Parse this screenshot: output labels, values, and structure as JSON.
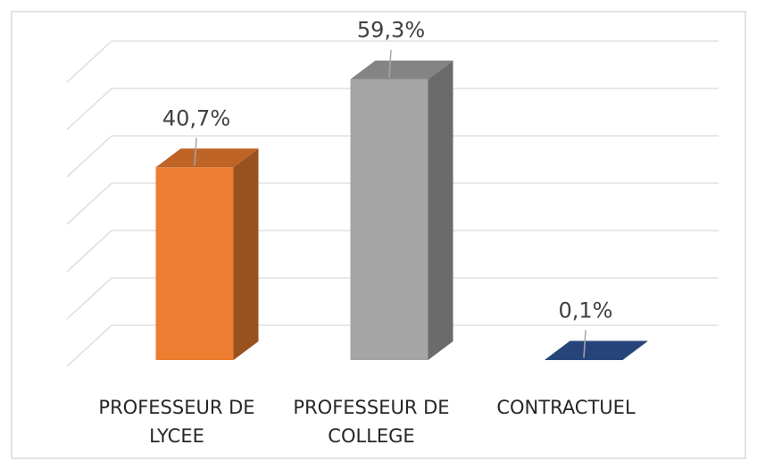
{
  "chart_data": {
    "type": "bar3d",
    "categories": [
      "PROFESSEUR DE LYCEE",
      "PROFESSEUR DE COLLEGE",
      "CONTRACTUEL"
    ],
    "values": [
      40.7,
      59.3,
      0.1
    ],
    "value_labels": [
      "40,7%",
      "59,3%",
      "0,1%"
    ],
    "colors": [
      "#ed7d31",
      "#a5a5a5",
      "#2f5597"
    ],
    "ylim": [
      0,
      60
    ],
    "yticks": [
      0,
      10,
      20,
      30,
      40,
      50,
      60
    ],
    "grid": true
  }
}
